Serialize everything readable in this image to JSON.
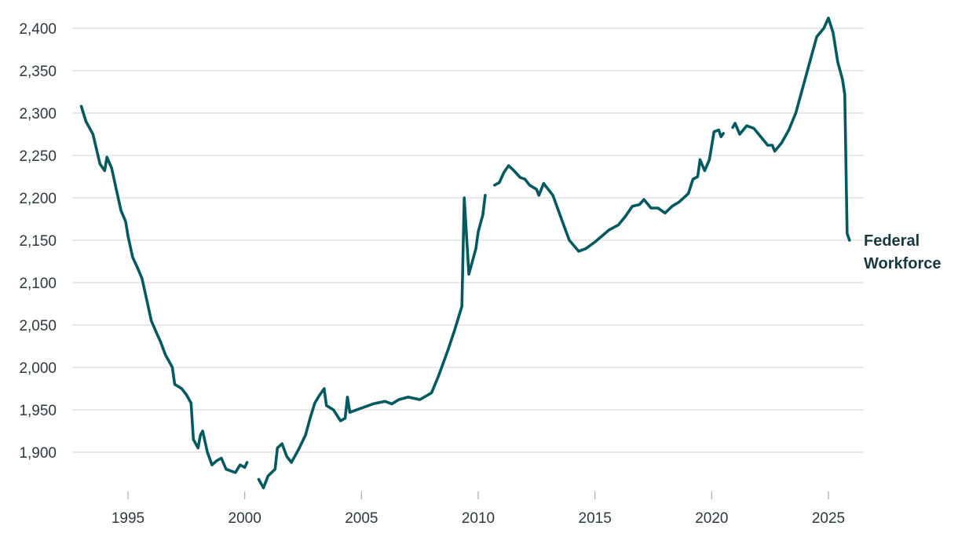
{
  "chart_data": {
    "type": "line",
    "title": "",
    "xlabel": "",
    "ylabel": "",
    "xlim": [
      1992.5,
      2026.5
    ],
    "ylim": [
      1860,
      2420
    ],
    "yticks": [
      1900,
      1950,
      2000,
      2050,
      2100,
      2150,
      2200,
      2250,
      2300,
      2350,
      2400
    ],
    "ytick_labels": [
      "1,900",
      "1,950",
      "2,000",
      "2,050",
      "2,100",
      "2,150",
      "2,200",
      "2,250",
      "2,300",
      "2,350",
      "2,400"
    ],
    "xticks": [
      1995,
      2000,
      2005,
      2010,
      2015,
      2020,
      2025
    ],
    "xtick_labels": [
      "1995",
      "2000",
      "2005",
      "2010",
      "2015",
      "2020",
      "2025"
    ],
    "grid": "horizontal",
    "colors": {
      "line": "#005a60",
      "grid": "#dcdcdc",
      "label": "#16383e"
    },
    "series": [
      {
        "name": "Federal Workforce",
        "label_lines": [
          "Federal",
          "Workforce"
        ],
        "segments": [
          [
            [
              1993.0,
              2308
            ],
            [
              1993.2,
              2290
            ],
            [
              1993.5,
              2275
            ],
            [
              1993.8,
              2240
            ],
            [
              1994.0,
              2232
            ],
            [
              1994.1,
              2248
            ],
            [
              1994.3,
              2235
            ],
            [
              1994.5,
              2210
            ],
            [
              1994.7,
              2185
            ],
            [
              1994.9,
              2172
            ],
            [
              1995.0,
              2155
            ],
            [
              1995.2,
              2130
            ],
            [
              1995.4,
              2118
            ],
            [
              1995.6,
              2105
            ],
            [
              1995.8,
              2080
            ],
            [
              1996.0,
              2055
            ],
            [
              1996.2,
              2042
            ],
            [
              1996.4,
              2030
            ],
            [
              1996.6,
              2015
            ],
            [
              1996.9,
              2000
            ],
            [
              1997.0,
              1980
            ],
            [
              1997.3,
              1975
            ],
            [
              1997.5,
              1968
            ],
            [
              1997.7,
              1958
            ],
            [
              1997.8,
              1915
            ],
            [
              1998.0,
              1905
            ],
            [
              1998.1,
              1920
            ],
            [
              1998.2,
              1925
            ],
            [
              1998.4,
              1900
            ],
            [
              1998.6,
              1885
            ],
            [
              1998.8,
              1890
            ],
            [
              1999.0,
              1893
            ],
            [
              1999.2,
              1880
            ],
            [
              1999.4,
              1878
            ],
            [
              1999.6,
              1876
            ],
            [
              1999.8,
              1885
            ],
            [
              2000.0,
              1882
            ],
            [
              2000.1,
              1888
            ]
          ],
          [
            [
              2000.6,
              1868
            ],
            [
              2000.8,
              1858
            ],
            [
              2001.0,
              1872
            ],
            [
              2001.3,
              1880
            ],
            [
              2001.4,
              1905
            ],
            [
              2001.6,
              1910
            ],
            [
              2001.8,
              1895
            ],
            [
              2002.0,
              1888
            ],
            [
              2002.3,
              1903
            ],
            [
              2002.6,
              1920
            ],
            [
              2002.8,
              1940
            ],
            [
              2003.0,
              1958
            ],
            [
              2003.2,
              1967
            ],
            [
              2003.4,
              1975
            ],
            [
              2003.5,
              1955
            ],
            [
              2003.8,
              1950
            ],
            [
              2004.1,
              1937
            ],
            [
              2004.3,
              1940
            ],
            [
              2004.4,
              1965
            ],
            [
              2004.5,
              1947
            ],
            [
              2005.0,
              1952
            ],
            [
              2005.5,
              1957
            ],
            [
              2006.0,
              1960
            ],
            [
              2006.3,
              1957
            ],
            [
              2006.6,
              1962
            ],
            [
              2007.0,
              1965
            ],
            [
              2007.5,
              1962
            ],
            [
              2008.0,
              1970
            ],
            [
              2008.3,
              1990
            ],
            [
              2008.7,
              2020
            ],
            [
              2009.0,
              2045
            ],
            [
              2009.3,
              2072
            ],
            [
              2009.4,
              2200
            ],
            [
              2009.6,
              2110
            ],
            [
              2009.9,
              2140
            ],
            [
              2010.0,
              2160
            ],
            [
              2010.2,
              2180
            ],
            [
              2010.3,
              2203
            ]
          ],
          [
            [
              2010.7,
              2215
            ],
            [
              2010.9,
              2218
            ],
            [
              2011.1,
              2230
            ],
            [
              2011.3,
              2238
            ],
            [
              2011.5,
              2233
            ],
            [
              2011.8,
              2224
            ],
            [
              2012.0,
              2222
            ],
            [
              2012.2,
              2215
            ],
            [
              2012.5,
              2210
            ],
            [
              2012.6,
              2203
            ],
            [
              2012.8,
              2217
            ],
            [
              2013.0,
              2210
            ],
            [
              2013.2,
              2203
            ],
            [
              2013.5,
              2180
            ],
            [
              2013.7,
              2165
            ],
            [
              2013.9,
              2150
            ],
            [
              2014.3,
              2137
            ],
            [
              2014.6,
              2140
            ],
            [
              2015.0,
              2148
            ],
            [
              2015.3,
              2155
            ],
            [
              2015.6,
              2162
            ],
            [
              2016.0,
              2168
            ],
            [
              2016.3,
              2178
            ],
            [
              2016.6,
              2190
            ],
            [
              2016.9,
              2192
            ],
            [
              2017.1,
              2198
            ],
            [
              2017.4,
              2188
            ],
            [
              2017.7,
              2188
            ],
            [
              2018.0,
              2182
            ],
            [
              2018.3,
              2190
            ],
            [
              2018.6,
              2195
            ],
            [
              2019.0,
              2205
            ],
            [
              2019.2,
              2222
            ],
            [
              2019.4,
              2225
            ],
            [
              2019.5,
              2245
            ],
            [
              2019.7,
              2232
            ],
            [
              2019.9,
              2245
            ],
            [
              2020.1,
              2278
            ],
            [
              2020.3,
              2280
            ],
            [
              2020.4,
              2272
            ],
            [
              2020.5,
              2276
            ]
          ],
          [
            [
              2020.9,
              2283
            ],
            [
              2021.0,
              2288
            ],
            [
              2021.2,
              2275
            ],
            [
              2021.5,
              2285
            ],
            [
              2021.8,
              2282
            ],
            [
              2022.1,
              2272
            ],
            [
              2022.4,
              2262
            ],
            [
              2022.6,
              2262
            ],
            [
              2022.7,
              2255
            ],
            [
              2023.0,
              2265
            ],
            [
              2023.3,
              2280
            ],
            [
              2023.6,
              2300
            ],
            [
              2023.9,
              2330
            ],
            [
              2024.2,
              2360
            ],
            [
              2024.5,
              2390
            ],
            [
              2024.8,
              2400
            ],
            [
              2025.0,
              2412
            ],
            [
              2025.2,
              2395
            ],
            [
              2025.4,
              2360
            ],
            [
              2025.6,
              2340
            ],
            [
              2025.7,
              2322
            ],
            [
              2025.8,
              2158
            ],
            [
              2025.9,
              2150
            ]
          ]
        ]
      }
    ]
  }
}
